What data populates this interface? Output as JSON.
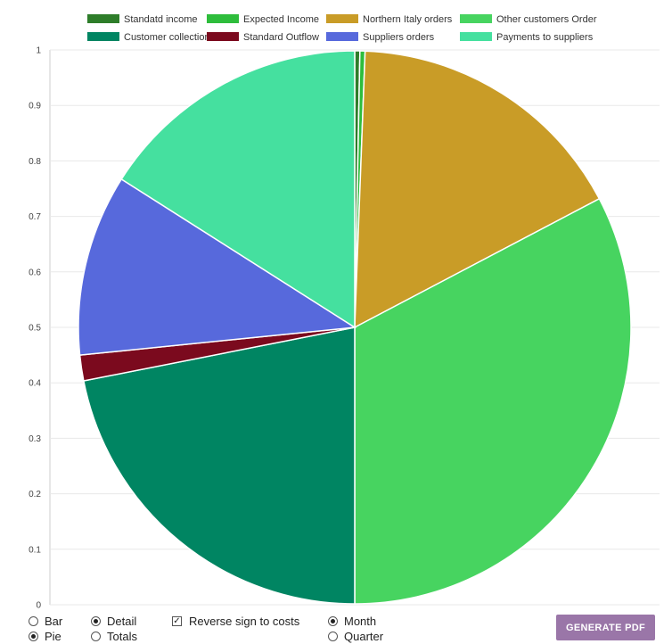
{
  "chart_data": {
    "type": "pie",
    "legend": [
      {
        "name": "Standatd income",
        "color": "#2e7d2a"
      },
      {
        "name": "Expected Income",
        "color": "#2ebd3c"
      },
      {
        "name": "Northern Italy orders",
        "color": "#c99c27"
      },
      {
        "name": "Other customers Order",
        "color": "#47d460"
      },
      {
        "name": "Customer collections",
        "color": "#008562"
      },
      {
        "name": "Standard Outflow",
        "color": "#7b0a1e"
      },
      {
        "name": "Suppliers orders",
        "color": "#5769dc"
      },
      {
        "name": "Payments to suppliers",
        "color": "#45e09f"
      }
    ],
    "slices": [
      {
        "label": "Standatd income",
        "fraction": 0.003
      },
      {
        "label": "Expected Income",
        "fraction": 0.003
      },
      {
        "label": "Northern Italy orders",
        "fraction": 0.167
      },
      {
        "label": "Other customers Order",
        "fraction": 0.327
      },
      {
        "label": "Customer collections",
        "fraction": 0.219
      },
      {
        "label": "Standard Outflow",
        "fraction": 0.015
      },
      {
        "label": "Suppliers orders",
        "fraction": 0.106
      },
      {
        "label": "Payments to suppliers",
        "fraction": 0.16
      }
    ],
    "y_ticks": [
      "1",
      "0.9",
      "0.8",
      "0.7",
      "0.6",
      "0.5",
      "0.4",
      "0.3",
      "0.2",
      "0.1",
      "0"
    ],
    "ylim": [
      0,
      1
    ],
    "grid": true,
    "legend_position": "top"
  },
  "controls": {
    "chart_type": {
      "bar_label": "Bar",
      "pie_label": "Pie",
      "selected": "Pie"
    },
    "view": {
      "detail_label": "Detail",
      "totals_label": "Totals",
      "selected": "Detail"
    },
    "reverse_sign_label": "Reverse sign to costs",
    "reverse_sign_checked": true,
    "period": {
      "month_label": "Month",
      "quarter_label": "Quarter",
      "selected": "Month"
    },
    "pdf_button_label": "GENERATE PDF"
  }
}
